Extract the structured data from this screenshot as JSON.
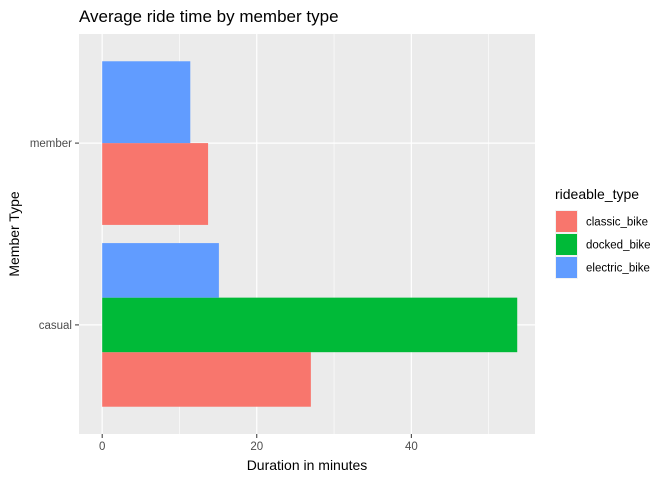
{
  "chart_data": {
    "type": "bar",
    "orientation": "horizontal",
    "title": "Average ride time by member type",
    "xlabel": "Duration in minutes",
    "ylabel": "Member Type",
    "categories": [
      "casual",
      "member"
    ],
    "series": [
      {
        "name": "classic_bike",
        "color": "#F8766D",
        "values": [
          27.0,
          13.7
        ]
      },
      {
        "name": "docked_bike",
        "color": "#00BA38",
        "values": [
          53.7,
          null
        ]
      },
      {
        "name": "electric_bike",
        "color": "#619CFF",
        "values": [
          15.1,
          11.4
        ]
      }
    ],
    "xlim": [
      -3,
      56
    ],
    "xticks": [
      0,
      20,
      40
    ],
    "grid": true,
    "legend": {
      "title": "rideable_type",
      "placement": "right"
    }
  }
}
